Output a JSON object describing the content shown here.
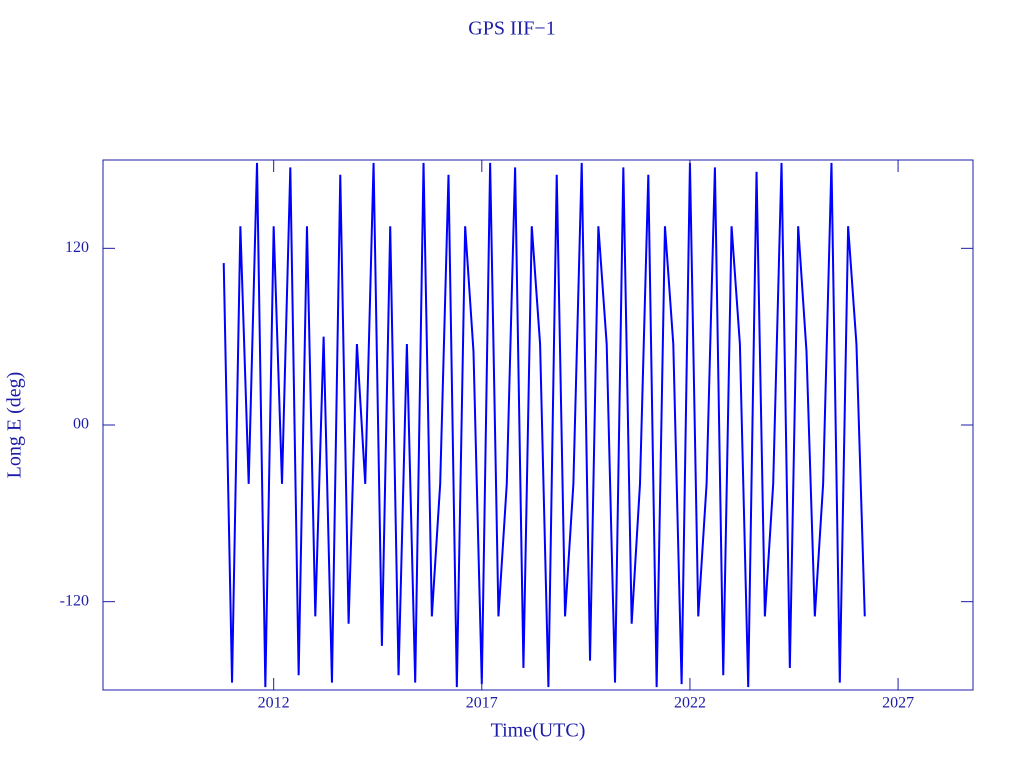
{
  "chart_data": {
    "type": "line",
    "title": "GPS IIF−1",
    "x_label": "Time(UTC)",
    "y_label": "Long E (deg)",
    "x": [
      2010.8,
      2011,
      2011.2,
      2011.4,
      2011.6,
      2011.8,
      2012,
      2012.2,
      2012.4,
      2012.6,
      2012.8,
      2013,
      2013.2,
      2013.4,
      2013.6,
      2013.8,
      2014,
      2014.2,
      2014.4,
      2014.6,
      2014.8,
      2015,
      2015.2,
      2015.4,
      2015.6,
      2015.8,
      2016,
      2016.2,
      2016.4,
      2016.6,
      2016.8,
      2017,
      2017.2,
      2017.4,
      2017.6,
      2017.8,
      2018,
      2018.2,
      2018.4,
      2018.6,
      2018.8,
      2019,
      2019.2,
      2019.4,
      2019.6,
      2019.8,
      2020,
      2020.2,
      2020.4,
      2020.6,
      2020.8,
      2021,
      2021.2,
      2021.4,
      2021.6,
      2021.8,
      2022,
      2022.2,
      2022.4,
      2022.6,
      2022.8,
      2023,
      2023.2,
      2023.4,
      2023.6,
      2023.8,
      2024,
      2024.2,
      2024.4,
      2024.6,
      2024.8,
      2025,
      2025.2,
      2025.4,
      2025.6,
      2025.8,
      2026,
      2026.2
    ],
    "series": [
      {
        "name": "Long E",
        "color": "#0000ff",
        "values": [
          110,
          -175,
          135,
          -40,
          178,
          -178,
          135,
          -40,
          175,
          -170,
          135,
          -130,
          60,
          -175,
          170,
          -135,
          55,
          -40,
          178,
          -150,
          135,
          -170,
          55,
          -175,
          178,
          -130,
          -40,
          170,
          -178,
          135,
          50,
          -176,
          178,
          -130,
          -40,
          175,
          -165,
          135,
          55,
          -178,
          170,
          -130,
          -40,
          178,
          -160,
          135,
          55,
          -175,
          175,
          -135,
          -40,
          170,
          -178,
          135,
          55,
          -176,
          178,
          -130,
          -40,
          175,
          -170,
          135,
          55,
          -178,
          172,
          -130,
          -40,
          178,
          -165,
          135,
          50,
          -130,
          -40,
          178,
          -175,
          135,
          55,
          -130
        ]
      }
    ],
    "xlim": [
      2007.9,
      2028.8
    ],
    "xticks": [
      2012,
      2017,
      2022,
      2027
    ],
    "ylim": [
      -180,
      180
    ],
    "yticks": [
      -120,
      {
        "value": 0,
        "label": "00"
      },
      120
    ],
    "axis_color": "#1c1ca8"
  }
}
